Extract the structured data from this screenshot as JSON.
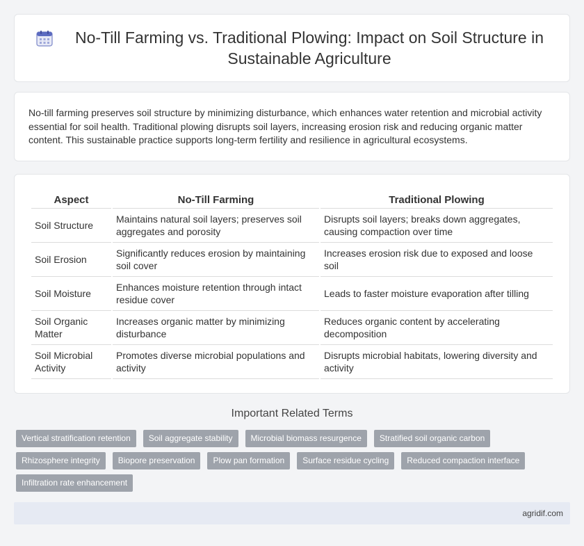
{
  "header": {
    "title": "No-Till Farming vs. Traditional Plowing: Impact on Soil Structure in Sustainable Agriculture",
    "icon": "calendar-icon"
  },
  "intro": {
    "text": "No-till farming preserves soil structure by minimizing disturbance, which enhances water retention and microbial activity essential for soil health. Traditional plowing disrupts soil layers, increasing erosion risk and reducing organic matter content. This sustainable practice supports long-term fertility and resilience in agricultural ecosystems."
  },
  "table": {
    "headers": [
      "Aspect",
      "No-Till Farming",
      "Traditional Plowing"
    ],
    "rows": [
      [
        "Soil Structure",
        "Maintains natural soil layers; preserves soil aggregates and porosity",
        "Disrupts soil layers; breaks down aggregates, causing compaction over time"
      ],
      [
        "Soil Erosion",
        "Significantly reduces erosion by maintaining soil cover",
        "Increases erosion risk due to exposed and loose soil"
      ],
      [
        "Soil Moisture",
        "Enhances moisture retention through intact residue cover",
        "Leads to faster moisture evaporation after tilling"
      ],
      [
        "Soil Organic Matter",
        "Increases organic matter by minimizing disturbance",
        "Reduces organic content by accelerating decomposition"
      ],
      [
        "Soil Microbial Activity",
        "Promotes diverse microbial populations and activity",
        "Disrupts microbial habitats, lowering diversity and activity"
      ]
    ]
  },
  "related": {
    "title": "Important Related Terms",
    "tags": [
      "Vertical stratification retention",
      "Soil aggregate stability",
      "Microbial biomass resurgence",
      "Stratified soil organic carbon",
      "Rhizosphere integrity",
      "Biopore preservation",
      "Plow pan formation",
      "Surface residue cycling",
      "Reduced compaction interface",
      "Infiltration rate enhancement"
    ]
  },
  "footer": {
    "site": "agridif.com"
  }
}
